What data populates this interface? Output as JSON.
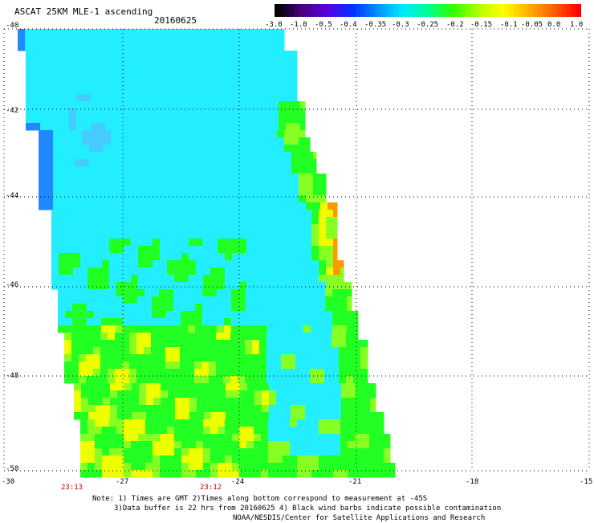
{
  "header": {
    "title": "ASCAT 25KM MLE-1 ascending",
    "date": "20160625"
  },
  "colorbar": {
    "labels": [
      "-3.0",
      "-1.0",
      "-0.5",
      "-0.4",
      "-0.35",
      "-0.3",
      "-0.25",
      "-0.2",
      "-0.15",
      "-0.1",
      "-0.05",
      "0.0",
      "1.0"
    ],
    "colors": [
      "#000000",
      "#4a0080",
      "#5a00e0",
      "#0030ff",
      "#0090ff",
      "#00e8ff",
      "#00ff90",
      "#30ff00",
      "#b0ff00",
      "#ffff00",
      "#ffb000",
      "#ff6000",
      "#ff0000"
    ]
  },
  "map": {
    "lat_labels": [
      "-40",
      "-42",
      "-44",
      "-46",
      "-48",
      "-50"
    ],
    "lon_labels": [
      "-30",
      "-27",
      "-24",
      "-21",
      "-18",
      "-15"
    ],
    "time_labels": [
      "23:13",
      "23:12"
    ],
    "grid_style": "dotted",
    "swath_colors": {
      "cyan": "#22eeff",
      "light_blue": "#44ccff",
      "blue": "#2288ff",
      "green": "#22ff22",
      "lime": "#88ff22",
      "yellow": "#eeff00",
      "orange": "#ff9900"
    }
  },
  "footer": {
    "line1": "Note: 1) Times are GMT 2)Times along bottom correspond to measurement at -45S",
    "line2": "3)Data buffer is 22 hrs from 20160625 4) Black wind barbs indicate possible contamination",
    "line3": "NOAA/NESDIS/Center for Satellite Applications and Research"
  }
}
